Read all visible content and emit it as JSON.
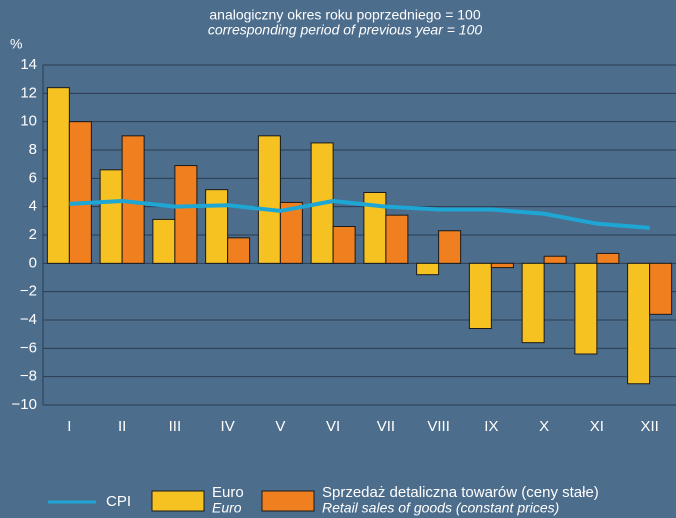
{
  "chart_data": {
    "type": "bar_line",
    "title": "analogiczny okres roku poprzedniego = 100",
    "subtitle": "corresponding period of previous year = 100",
    "y_label": "%",
    "categories": [
      "I",
      "II",
      "III",
      "IV",
      "V",
      "VI",
      "VII",
      "VIII",
      "IX",
      "X",
      "XI",
      "XII"
    ],
    "series": [
      {
        "name": "CPI",
        "type": "line",
        "color": "#1ea6d4",
        "values": [
          4.2,
          4.4,
          4.0,
          4.1,
          3.7,
          4.4,
          4.0,
          3.8,
          3.8,
          3.5,
          2.8,
          2.5
        ]
      },
      {
        "name": "Euro",
        "name_en": "Euro",
        "type": "bar",
        "color": "#f6c221",
        "values": [
          12.4,
          6.6,
          3.1,
          5.2,
          9.0,
          8.5,
          5.0,
          -0.8,
          -4.6,
          -5.6,
          -6.4,
          -8.5
        ]
      },
      {
        "name": "Sprzedaż detaliczna towarów (ceny stałe)",
        "name_en": "Retail sales of goods (constant prices)",
        "type": "bar",
        "color": "#f07f1f",
        "values": [
          10.0,
          9.0,
          6.9,
          1.8,
          4.3,
          2.6,
          3.4,
          2.3,
          -0.3,
          0.5,
          0.7,
          -3.6
        ]
      }
    ],
    "ylim": [
      -10,
      14
    ],
    "yticks": [
      {
        "value": -10,
        "label": "−10"
      },
      {
        "value": -8,
        "label": "−8"
      },
      {
        "value": -6,
        "label": "−6"
      },
      {
        "value": -4,
        "label": "−4"
      },
      {
        "value": -2,
        "label": "−2"
      },
      0,
      2,
      4,
      6,
      8,
      10,
      12,
      14
    ],
    "grid": true,
    "legend": "bottom"
  }
}
